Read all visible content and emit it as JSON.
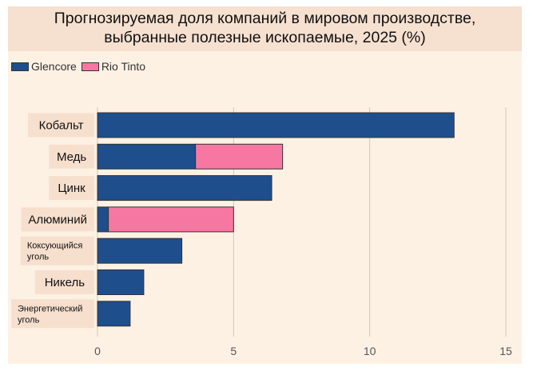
{
  "title_line1": "Прогнозируемая доля компаний в мировом производстве,",
  "title_line2": "выбранные полезные ископаемые, 2025 (%)",
  "chart_data": {
    "type": "bar",
    "orientation": "horizontal",
    "stacked": true,
    "title": "Прогнозируемая доля компаний в мировом производстве, выбранные полезные ископаемые, 2025 (%)",
    "categories": [
      [
        "Кобальт"
      ],
      [
        "Медь"
      ],
      [
        "Цинк"
      ],
      [
        "Алюминий"
      ],
      [
        "Коксующийся",
        "уголь"
      ],
      [
        "Никель"
      ],
      [
        "Энергетический",
        "уголь"
      ]
    ],
    "series": [
      {
        "name": "Glencore",
        "color": "#1f4e8c",
        "values": [
          13.1,
          3.6,
          6.4,
          0.4,
          3.1,
          1.7,
          1.2
        ]
      },
      {
        "name": "Rio Tinto",
        "color": "#f678a2",
        "values": [
          0,
          3.2,
          0,
          4.6,
          0,
          0,
          0
        ]
      }
    ],
    "xlim": [
      0,
      15
    ],
    "xticks": [
      0,
      5,
      10,
      15
    ],
    "xlabel": "",
    "ylabel": "",
    "grid": true,
    "legend": "top-left"
  }
}
